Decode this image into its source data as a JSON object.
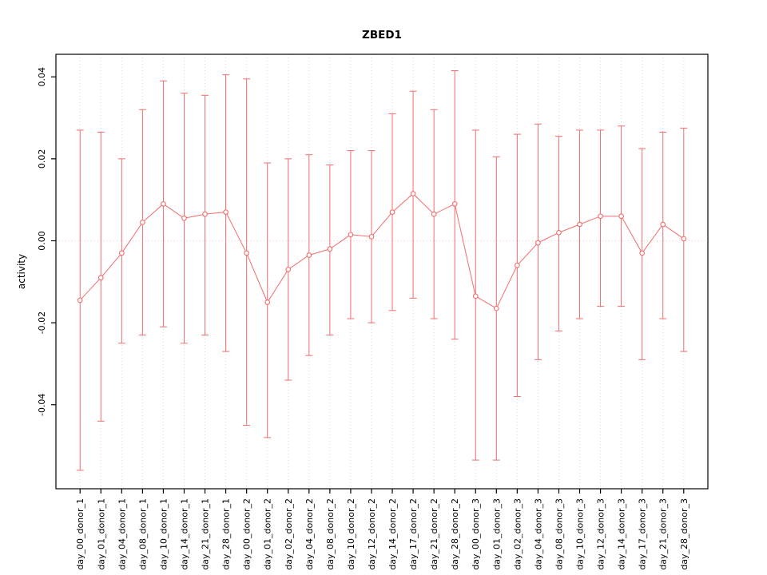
{
  "chart_data": {
    "type": "line",
    "title": "ZBED1",
    "xlabel": "",
    "ylabel": "activity",
    "legend": "none",
    "grid": {
      "vertical_dotted": true,
      "zero_line_dotted": true
    },
    "ylim": [
      -0.0605,
      0.0455
    ],
    "yticks": [
      -0.04,
      -0.02,
      0.0,
      0.02,
      0.04
    ],
    "categories": [
      "day_00_donor_1",
      "day_01_donor_1",
      "day_04_donor_1",
      "day_08_donor_1",
      "day_10_donor_1",
      "day_14_donor_1",
      "day_21_donor_1",
      "day_28_donor_1",
      "day_00_donor_2",
      "day_01_donor_2",
      "day_02_donor_2",
      "day_04_donor_2",
      "day_08_donor_2",
      "day_10_donor_2",
      "day_12_donor_2",
      "day_14_donor_2",
      "day_17_donor_2",
      "day_21_donor_2",
      "day_28_donor_2",
      "day_00_donor_3",
      "day_01_donor_3",
      "day_02_donor_3",
      "day_04_donor_3",
      "day_08_donor_3",
      "day_10_donor_3",
      "day_12_donor_3",
      "day_14_donor_3",
      "day_17_donor_3",
      "day_21_donor_3",
      "day_28_donor_3"
    ],
    "values": [
      -0.0145,
      -0.009,
      -0.003,
      0.0045,
      0.009,
      0.0055,
      0.0065,
      0.007,
      -0.003,
      -0.015,
      -0.007,
      -0.0035,
      -0.002,
      0.0015,
      0.001,
      0.007,
      0.0115,
      0.0065,
      0.009,
      -0.0135,
      -0.0165,
      -0.006,
      -0.0005,
      0.002,
      0.004,
      0.006,
      0.006,
      -0.003,
      0.004,
      0.0005
    ],
    "upper": [
      0.027,
      0.0265,
      0.02,
      0.032,
      0.039,
      0.036,
      0.0355,
      0.0405,
      0.0395,
      0.019,
      0.02,
      0.021,
      0.0185,
      0.022,
      0.022,
      0.031,
      0.0365,
      0.032,
      0.0415,
      0.027,
      0.0205,
      0.026,
      0.0285,
      0.0255,
      0.027,
      0.027,
      0.028,
      0.0225,
      0.0265,
      0.0275
    ],
    "lower": [
      -0.056,
      -0.044,
      -0.025,
      -0.023,
      -0.021,
      -0.025,
      -0.023,
      -0.027,
      -0.045,
      -0.048,
      -0.034,
      -0.028,
      -0.023,
      -0.019,
      -0.02,
      -0.017,
      -0.014,
      -0.019,
      -0.024,
      -0.0535,
      -0.0535,
      -0.038,
      -0.029,
      -0.022,
      -0.019,
      -0.016,
      -0.016,
      -0.029,
      -0.019,
      -0.027
    ],
    "colors": {
      "series": "#f26d6d",
      "point_fill": "#ffffff",
      "grid": "#d9d9d9",
      "zero_line": "#f5c6c6",
      "axis": "#000000"
    }
  }
}
